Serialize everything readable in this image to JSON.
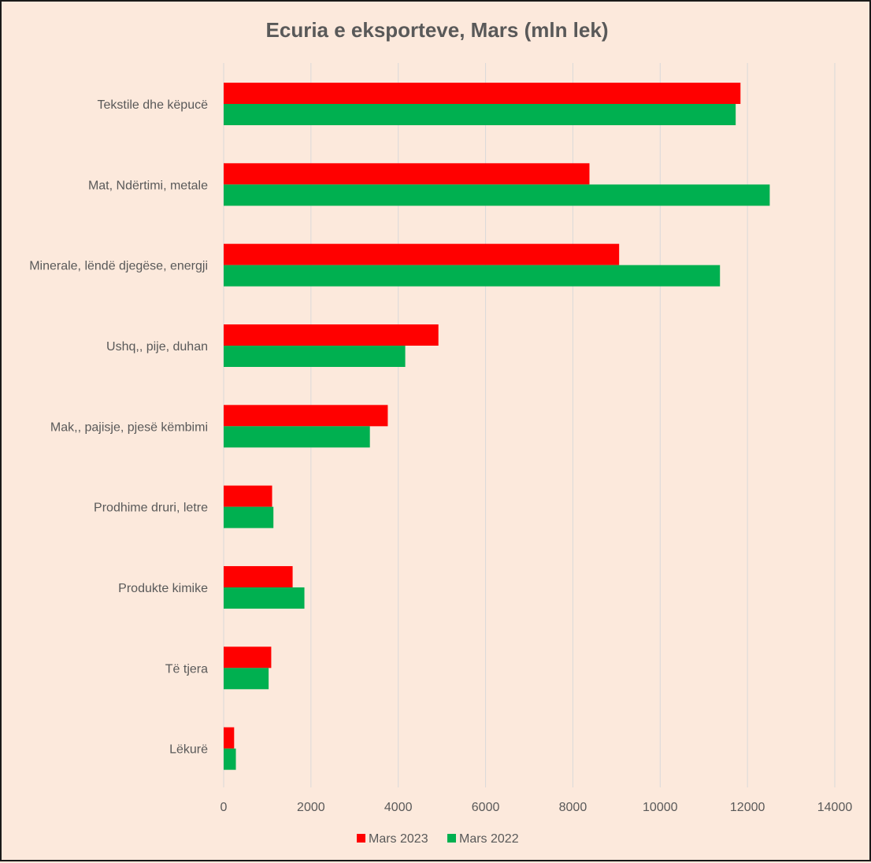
{
  "chart_data": {
    "type": "bar",
    "orientation": "horizontal",
    "title": "Ecuria e eksporteve, Mars (mln lek)",
    "categories": [
      "Tekstile dhe këpucë",
      "Mat, Ndërtimi, metale",
      "Minerale, lëndë djegëse, energji",
      "Ushq,, pije, duhan",
      "Mak,, pajisje, pjesë këmbimi",
      "Prodhime druri, letre",
      "Produkte kimike",
      "Të tjera",
      "Lëkurë"
    ],
    "series": [
      {
        "name": "Mars 2023",
        "color": "#ff0000",
        "values": [
          11840,
          8380,
          9060,
          4920,
          3760,
          1110,
          1580,
          1090,
          240
        ]
      },
      {
        "name": "Mars 2022",
        "color": "#00b050",
        "values": [
          11730,
          12510,
          11370,
          4160,
          3350,
          1140,
          1850,
          1030,
          280
        ]
      }
    ],
    "xlim": [
      0,
      14000
    ],
    "xticks": [
      "0",
      "2000",
      "4000",
      "6000",
      "8000",
      "10000",
      "12000",
      "14000"
    ],
    "grid": true,
    "legend_position": "bottom"
  }
}
